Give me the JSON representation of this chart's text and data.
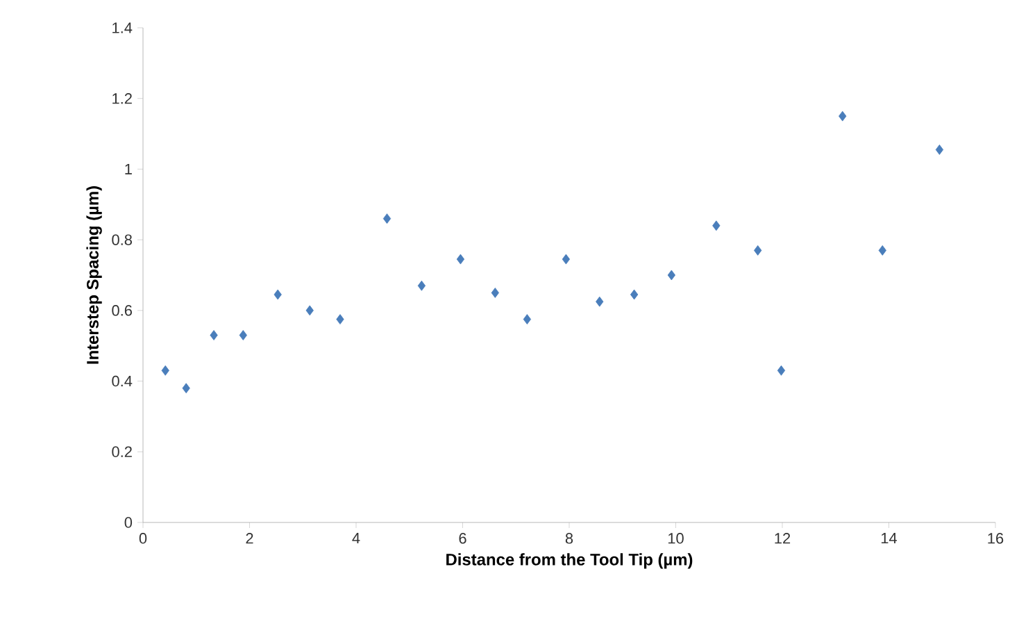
{
  "chart_data": {
    "type": "scatter",
    "xlabel": "Distance from the Tool Tip (µm)",
    "ylabel": "Interstep  Spacing (µm)",
    "x": [
      0.42,
      0.81,
      1.33,
      1.88,
      2.53,
      3.13,
      3.7,
      4.58,
      5.23,
      5.96,
      6.61,
      7.21,
      7.94,
      8.57,
      9.22,
      9.92,
      10.76,
      11.54,
      11.98,
      13.13,
      13.88,
      14.95
    ],
    "values": [
      0.43,
      0.38,
      0.53,
      0.53,
      0.645,
      0.6,
      0.575,
      0.86,
      0.67,
      0.745,
      0.65,
      0.575,
      0.745,
      0.625,
      0.645,
      0.7,
      0.84,
      0.77,
      0.43,
      1.15,
      0.77,
      1.055
    ],
    "color": "#4a7ebb",
    "marker": "diamond",
    "xlim": [
      0,
      16
    ],
    "xticks": [
      0,
      2,
      4,
      6,
      8,
      10,
      12,
      14,
      16
    ],
    "ylim": [
      0,
      1.4
    ],
    "yticks": [
      0,
      0.2,
      0.4,
      0.6,
      0.8,
      1,
      1.2,
      1.4
    ]
  }
}
